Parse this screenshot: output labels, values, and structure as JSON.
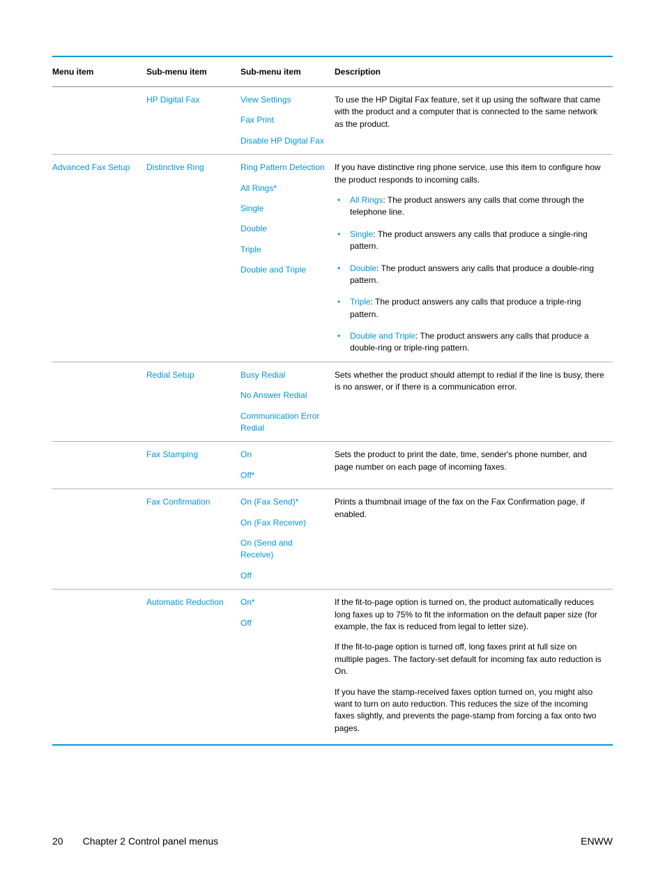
{
  "colors": {
    "accent": "#0096d6",
    "text": "#000000",
    "border_light": "#b0b0b0"
  },
  "typography": {
    "font_family": "Arial, Helvetica, sans-serif",
    "body_fontsize": 12,
    "footer_fontsize": 14
  },
  "table": {
    "headers": {
      "menu_item": "Menu item",
      "sub_menu_1": "Sub-menu item",
      "sub_menu_2": "Sub-menu item",
      "description": "Description"
    },
    "rows": [
      {
        "menu": "",
        "sub1": "HP Digital Fax",
        "sub2": [
          "View Settings",
          "Fax Print",
          "Disable HP Digital Fax"
        ],
        "desc_intro": "To use the HP Digital Fax feature, set it up using the software that came with the product and a computer that is connected to the same network as the product."
      },
      {
        "menu": "Advanced Fax Setup",
        "sub1": "Distinctive Ring",
        "sub2": [
          "Ring Pattern Detection",
          "All Rings*",
          "Single",
          "Double",
          "Triple",
          "Double and Triple"
        ],
        "desc_intro": "If you have distinctive ring phone service, use this item to configure how the product responds to incoming calls.",
        "bullets": [
          {
            "label": "All Rings",
            "text": ": The product answers any calls that come through the telephone line."
          },
          {
            "label": "Single",
            "text": ": The product answers any calls that produce a single-ring pattern."
          },
          {
            "label": "Double",
            "text": ": The product answers any calls that produce a double-ring pattern."
          },
          {
            "label": "Triple",
            "text": ": The product answers any calls that produce a triple-ring pattern."
          },
          {
            "label": "Double and Triple",
            "text": ": The product answers any calls that produce a double-ring or triple-ring pattern."
          }
        ]
      },
      {
        "menu": "",
        "sub1": "Redial Setup",
        "sub2": [
          "Busy Redial",
          "No Answer Redial",
          "Communication Error Redial"
        ],
        "desc_intro": "Sets whether the product should attempt to redial if the line is busy, there is no answer, or if there is a communication error."
      },
      {
        "menu": "",
        "sub1": "Fax Stamping",
        "sub2": [
          "On",
          "Off*"
        ],
        "desc_intro": "Sets the product to print the date, time, sender's phone number, and page number on each page of incoming faxes."
      },
      {
        "menu": "",
        "sub1": "Fax Confirmation",
        "sub2": [
          "On (Fax Send)*",
          "On (Fax Receive)",
          "On (Send and Receive)",
          "Off"
        ],
        "desc_intro": "Prints a thumbnail image of the fax on the Fax Confirmation page, if enabled."
      },
      {
        "menu": "",
        "sub1": "Automatic Reduction",
        "sub2": [
          "On*",
          "Off"
        ],
        "desc_paras": [
          "If the fit-to-page option is turned on, the product automatically reduces long faxes up to 75% to fit the information on the default paper size (for example, the fax is reduced from legal to letter size).",
          "If the fit-to-page option is turned off, long faxes print at full size on multiple pages. The factory-set default for incoming fax auto reduction is On.",
          "If you have the stamp-received faxes option turned on, you might also want to turn on auto reduction. This reduces the size of the incoming faxes slightly, and prevents the page-stamp from forcing a fax onto two pages."
        ]
      }
    ]
  },
  "footer": {
    "page_num": "20",
    "chapter": "Chapter 2   Control panel menus",
    "lang": "ENWW"
  }
}
